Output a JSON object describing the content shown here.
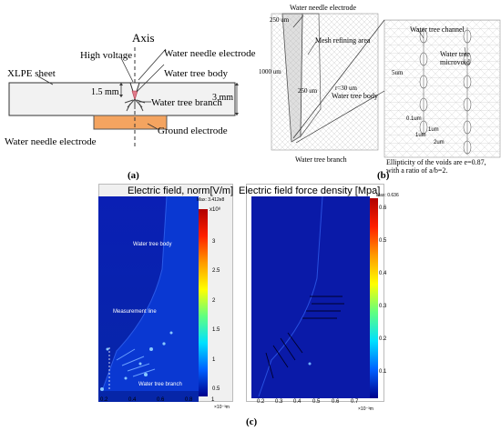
{
  "panel_a": {
    "axis": "Axis",
    "high_voltage": "High voltage",
    "water_needle_electrode_top": "Water needle electrode",
    "xlpe_sheet": "XLPE sheet",
    "water_tree_body": "Water tree body",
    "water_tree_branch": "Water tree branch",
    "dim_1_5": "1.5 mm",
    "dim_3": "3 mm",
    "water_needle_electrode_bottom": "Water needle electrode",
    "ground_electrode": "Ground electrode",
    "caption": "(a)",
    "colors": {
      "sheet": "#f2f2f2",
      "ground": "#f4a460",
      "tree": "#e07a8a"
    }
  },
  "panel_b": {
    "water_needle_electrode": "Water needle electrode",
    "dim_250_top": "250 um",
    "mesh_refining_area": "Mesh refining area",
    "dim_1000": "1000 um",
    "dim_r30": "r=30 um",
    "dim_250_mid": "250 um",
    "water_tree_body": "Water tree body",
    "water_tree_branch": "Water tree branch",
    "water_tree_channel": "Water tree channel",
    "water_tree_microvoid_1": "Water tree",
    "water_tree_microvoid_2": "microvoid",
    "dim_5um": "5um",
    "dim_0_1um": "0.1um",
    "dim_1um_a": "1um",
    "dim_1um_b": "1um",
    "dim_2um": "2um",
    "ellipticity_1": "Ellipticity of the voids are e=0.87,",
    "ellipticity_2": "with a ratio of a/b=2.",
    "caption": "(b)"
  },
  "panel_c": {
    "left_title": "Electric field, norm[V/m]",
    "left_max": "Max: 3.412e8",
    "left_exp": "x10⁸",
    "left_ticks": [
      "3",
      "2.5",
      "2",
      "1.5",
      "1",
      "0.5"
    ],
    "left_labels": {
      "body": "Water tree body",
      "line": "Measurement line",
      "branch": "Water tree branch"
    },
    "left_x_ticks": [
      "0.2",
      "0.4",
      "0.6",
      "0.8",
      "1"
    ],
    "left_x_unit": "×10⁻³m",
    "right_title": "Electric field force density [Mpa]",
    "right_max": "Max: 0.636",
    "right_ticks": [
      "0.6",
      "0.5",
      "0.4",
      "0.3",
      "0.2",
      "0.1"
    ],
    "right_x_ticks": [
      "0.2",
      "0.3",
      "0.4",
      "0.5",
      "0.6",
      "0.7"
    ],
    "right_x_unit": "×10⁻³m",
    "caption": "(c)"
  }
}
